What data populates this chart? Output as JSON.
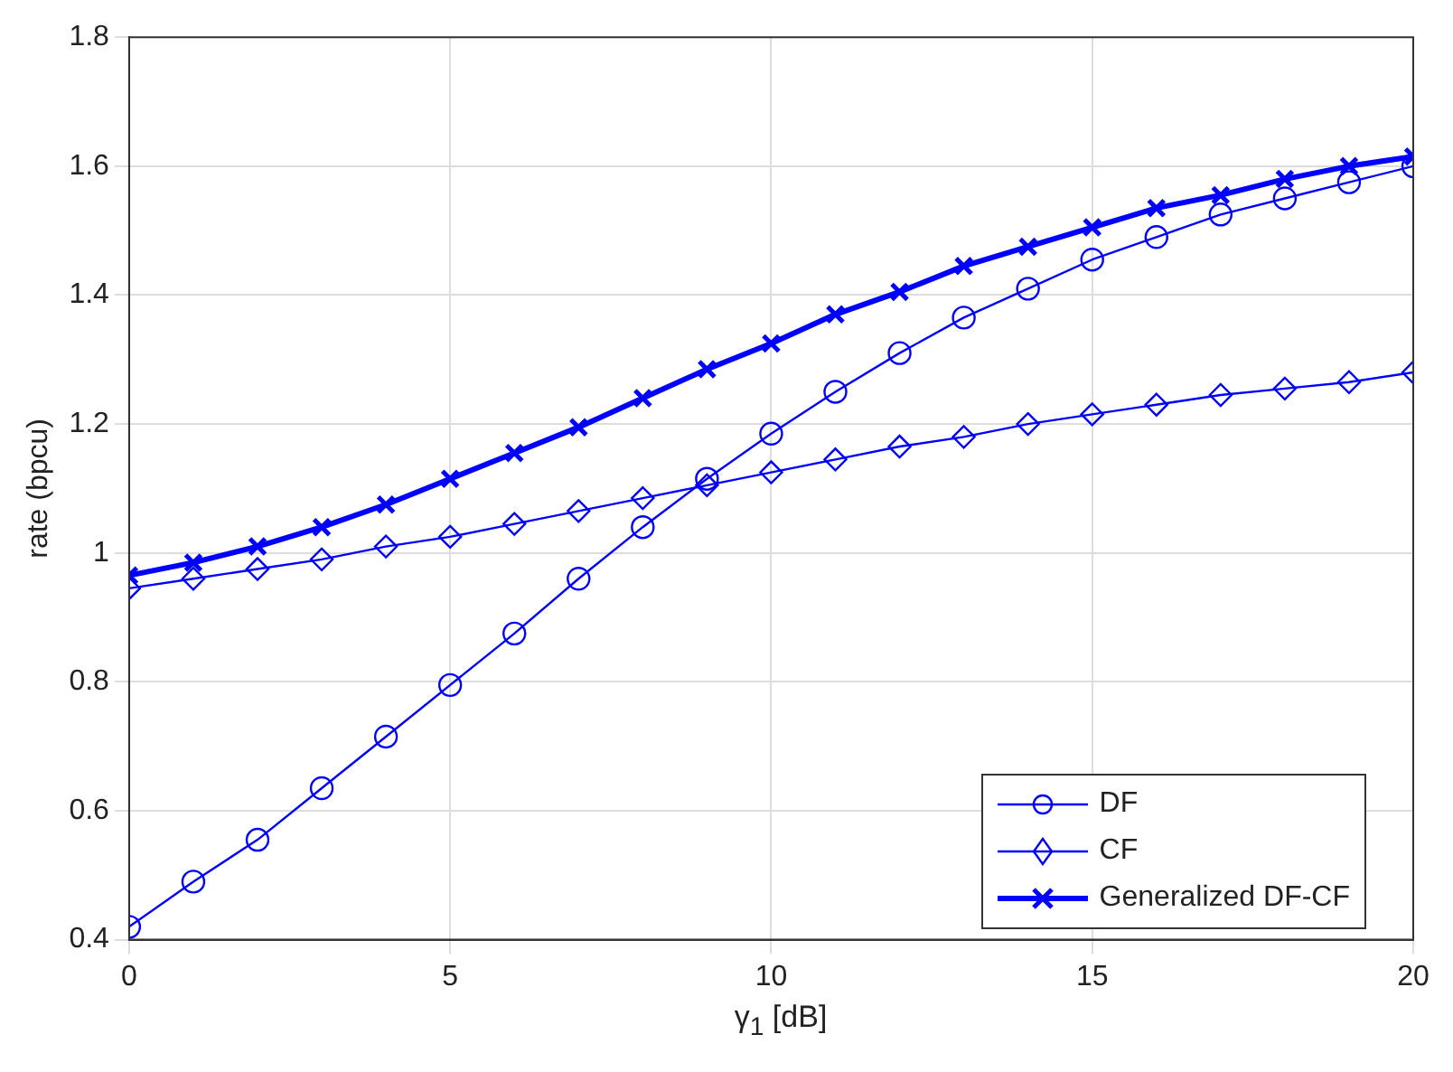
{
  "chart_data": {
    "type": "line",
    "xlabel": "γ$_{1}$ [dB]",
    "ylabel": "rate (bpcu)",
    "x": [
      0,
      1,
      2,
      3,
      4,
      5,
      6,
      7,
      8,
      9,
      10,
      11,
      12,
      13,
      14,
      15,
      16,
      17,
      18,
      19,
      20
    ],
    "series": [
      {
        "name": "DF",
        "color": "#0000ff",
        "marker": "circle",
        "values": [
          0.42,
          0.49,
          0.555,
          0.635,
          0.715,
          0.795,
          0.875,
          0.96,
          1.04,
          1.115,
          1.185,
          1.25,
          1.31,
          1.365,
          1.41,
          1.455,
          1.49,
          1.525,
          1.55,
          1.575,
          1.6
        ]
      },
      {
        "name": "CF",
        "color": "#0000ff",
        "marker": "diamond",
        "values": [
          0.945,
          0.96,
          0.975,
          0.99,
          1.01,
          1.025,
          1.045,
          1.065,
          1.085,
          1.105,
          1.125,
          1.145,
          1.165,
          1.18,
          1.2,
          1.215,
          1.23,
          1.245,
          1.255,
          1.265,
          1.28
        ]
      },
      {
        "name": "Generalized DF-CF",
        "color": "#0000ff",
        "marker": "cross",
        "values": [
          0.965,
          0.985,
          1.01,
          1.04,
          1.075,
          1.115,
          1.155,
          1.195,
          1.24,
          1.285,
          1.325,
          1.37,
          1.405,
          1.445,
          1.475,
          1.505,
          1.535,
          1.555,
          1.58,
          1.6,
          1.615
        ]
      }
    ],
    "xlim": [
      0,
      20
    ],
    "xticks": [
      0,
      5,
      10,
      15,
      20
    ],
    "ylim": [
      0.4,
      1.8
    ],
    "yticks": [
      0.4,
      0.6,
      0.8,
      1,
      1.2,
      1.4,
      1.6,
      1.8
    ],
    "grid": true,
    "legend": "bottom right",
    "line_style": "solid"
  }
}
